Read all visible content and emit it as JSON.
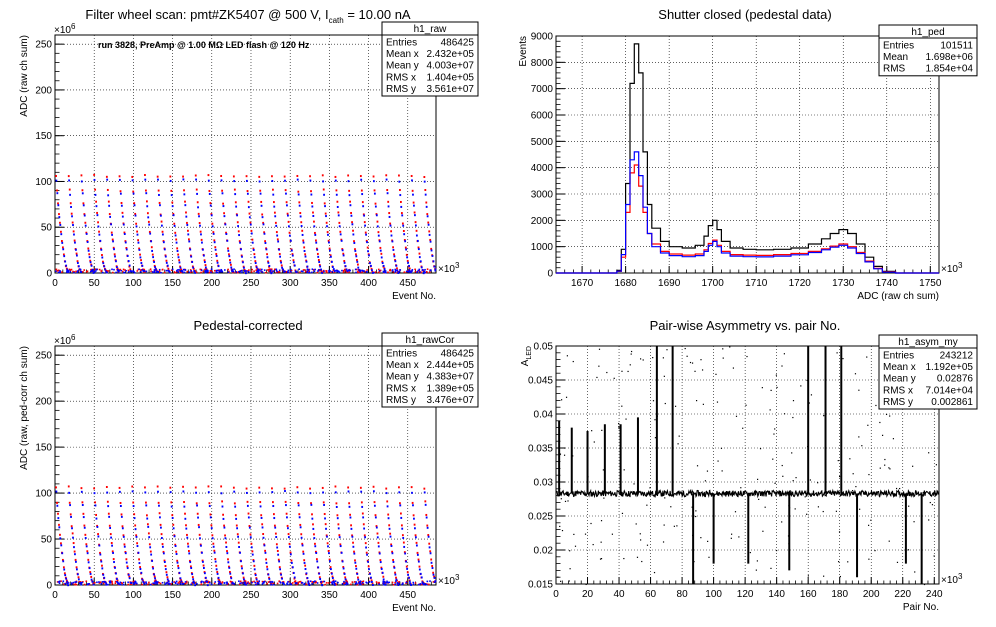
{
  "panels": [
    {
      "title": "Filter wheel scan: pmt#ZK5407 @   500 V, I",
      "title_sub": "cath",
      "title_suffix": " = 10.00 nA",
      "subtitle": "run 3828, PreAmp @ 1.00 MΩ LED flash @  120 Hz",
      "stat_box": {
        "title": "h1_raw",
        "rows": [
          {
            "label": "Entries",
            "value": "486425"
          },
          {
            "label": "Mean x",
            "value": "2.432e+05"
          },
          {
            "label": "Mean y",
            "value": "4.003e+07"
          },
          {
            "label": "RMS x",
            "value": "1.404e+05"
          },
          {
            "label": "RMS y",
            "value": "3.561e+07"
          }
        ]
      },
      "x_axis": {
        "label": "Event No.",
        "ticks": [
          "0",
          "50",
          "100",
          "150",
          "200",
          "250",
          "300",
          "350",
          "400",
          "450"
        ],
        "multiplier": "×10",
        "multiplier_exp": "3"
      },
      "y_axis": {
        "label": "ADC (raw ch sum)",
        "ticks": [
          "0",
          "50",
          "100",
          "150",
          "200",
          "250"
        ],
        "multiplier": "×10",
        "multiplier_exp": "6"
      }
    },
    {
      "title": "Shutter closed (pedestal data)",
      "stat_box": {
        "title": "h1_ped",
        "rows": [
          {
            "label": "Entries",
            "value": "101511"
          },
          {
            "label": "Mean",
            "value": "1.698e+06"
          },
          {
            "label": "RMS",
            "value": "1.854e+04"
          }
        ]
      },
      "x_axis": {
        "label": "ADC (raw ch sum)",
        "ticks": [
          "1670",
          "1680",
          "1690",
          "1700",
          "1710",
          "1720",
          "1730",
          "1740",
          "1750"
        ],
        "multiplier": "×10",
        "multiplier_exp": "3"
      },
      "y_axis": {
        "label": "Events",
        "ticks": [
          "0",
          "1000",
          "2000",
          "3000",
          "4000",
          "5000",
          "6000",
          "7000",
          "8000",
          "9000"
        ]
      }
    },
    {
      "title": "Pedestal-corrected",
      "stat_box": {
        "title": "h1_rawCor",
        "rows": [
          {
            "label": "Entries",
            "value": "486425"
          },
          {
            "label": "Mean x",
            "value": "2.444e+05"
          },
          {
            "label": "Mean y",
            "value": "4.383e+07"
          },
          {
            "label": "RMS x",
            "value": "1.389e+05"
          },
          {
            "label": "RMS y",
            "value": "3.476e+07"
          }
        ]
      },
      "x_axis": {
        "label": "Event No.",
        "ticks": [
          "0",
          "50",
          "100",
          "150",
          "200",
          "250",
          "300",
          "350",
          "400",
          "450"
        ],
        "multiplier": "×10",
        "multiplier_exp": "3"
      },
      "y_axis": {
        "label": "ADC (raw, ped-corr ch sum)",
        "ticks": [
          "0",
          "50",
          "100",
          "150",
          "200",
          "250"
        ],
        "multiplier": "×10",
        "multiplier_exp": "6"
      }
    },
    {
      "title": "Pair-wise Asymmetry vs. pair No.",
      "stat_box": {
        "title": "h1_asym_my",
        "rows": [
          {
            "label": "Entries",
            "value": "243212"
          },
          {
            "label": "Mean x",
            "value": "1.192e+05"
          },
          {
            "label": "Mean y",
            "value": "0.02876"
          },
          {
            "label": "RMS x",
            "value": "7.014e+04"
          },
          {
            "label": "RMS y",
            "value": "0.002861"
          }
        ]
      },
      "x_axis": {
        "label": "Pair No.",
        "ticks": [
          "0",
          "20",
          "40",
          "60",
          "80",
          "100",
          "120",
          "140",
          "160",
          "180",
          "200",
          "220",
          "240"
        ],
        "multiplier": "×10",
        "multiplier_exp": "3"
      },
      "y_axis": {
        "label": "A",
        "label_sub": "LED",
        "ticks": [
          "0.015",
          "0.02",
          "0.025",
          "0.03",
          "0.035",
          "0.04",
          "0.045",
          "0.05"
        ]
      }
    }
  ],
  "chart_data": [
    {
      "type": "scatter",
      "title": "Filter wheel scan: pmt#ZK5407 @   500 V, Icath = 10.00 nA",
      "xlabel": "Event No.",
      "ylabel": "ADC (raw ch sum)",
      "x_units_multiplier": 1000,
      "y_units_multiplier": 1000000,
      "xlim": [
        0,
        486
      ],
      "ylim": [
        0,
        260
      ],
      "grid": true,
      "legend": "top-right",
      "colors": {
        "red": "#ff0000",
        "blue": "#0000ff"
      },
      "filter_cycle_period": 16.2,
      "series": [
        {
          "name": "",
          "color": "#ff0000",
          "step_levels": [
            106,
            90,
            77,
            65,
            55,
            45,
            36,
            27,
            20,
            13,
            8,
            4,
            2
          ]
        },
        {
          "name": "",
          "color": "#0000ff",
          "step_levels": [
            101,
            86,
            73,
            62,
            52,
            42,
            34,
            25,
            18,
            12,
            7,
            3,
            1
          ]
        }
      ]
    },
    {
      "type": "line",
      "title": "Shutter closed (pedestal data)",
      "xlabel": "ADC (raw ch sum)",
      "ylabel": "Events",
      "x_units_multiplier": 1000,
      "xlim": [
        1664,
        1752
      ],
      "ylim": [
        0,
        9000
      ],
      "grid": true,
      "legend": "top-right",
      "series": [
        {
          "name": "",
          "color": "#000000",
          "x": [
            1664,
            1676,
            1678,
            1679,
            1680,
            1681,
            1682,
            1683,
            1684,
            1685,
            1686,
            1688,
            1690,
            1693,
            1696,
            1698,
            1699,
            1700,
            1701,
            1702,
            1704,
            1707,
            1710,
            1714,
            1718,
            1722,
            1725,
            1727,
            1729,
            1731,
            1733,
            1735,
            1737,
            1739,
            1742,
            1752
          ],
          "y": [
            0,
            0,
            100,
            900,
            3400,
            7200,
            8700,
            7600,
            4600,
            2600,
            1700,
            1200,
            1000,
            950,
            1050,
            1400,
            1800,
            2000,
            1650,
            1200,
            950,
            900,
            880,
            900,
            950,
            1100,
            1300,
            1500,
            1650,
            1500,
            1100,
            600,
            250,
            60,
            0,
            0
          ]
        },
        {
          "name": "",
          "color": "#ff0000",
          "x": [
            1664,
            1676,
            1678,
            1679,
            1680,
            1681,
            1682,
            1683,
            1684,
            1685,
            1686,
            1688,
            1690,
            1693,
            1696,
            1698,
            1699,
            1700,
            1701,
            1702,
            1704,
            1707,
            1710,
            1714,
            1718,
            1722,
            1725,
            1727,
            1729,
            1731,
            1733,
            1735,
            1737,
            1739,
            1742,
            1752
          ],
          "y": [
            0,
            0,
            60,
            600,
            2300,
            3800,
            4100,
            3300,
            2300,
            1500,
            1100,
            820,
            720,
            680,
            720,
            880,
            1120,
            1250,
            1050,
            820,
            700,
            680,
            670,
            700,
            740,
            820,
            920,
            1020,
            1100,
            1000,
            780,
            450,
            180,
            40,
            0,
            0
          ]
        },
        {
          "name": "",
          "color": "#0000ff",
          "x": [
            1664,
            1676,
            1678,
            1679,
            1680,
            1681,
            1682,
            1683,
            1684,
            1685,
            1686,
            1688,
            1690,
            1693,
            1696,
            1698,
            1699,
            1700,
            1701,
            1702,
            1704,
            1707,
            1710,
            1714,
            1718,
            1722,
            1725,
            1727,
            1729,
            1731,
            1733,
            1735,
            1737,
            1739,
            1742,
            1752
          ],
          "y": [
            0,
            0,
            70,
            700,
            2600,
            4300,
            4600,
            3700,
            2500,
            1500,
            1000,
            760,
            660,
            620,
            660,
            820,
            1050,
            1200,
            1000,
            760,
            640,
            620,
            610,
            640,
            690,
            780,
            880,
            980,
            1050,
            950,
            740,
            420,
            160,
            30,
            0,
            0
          ]
        }
      ]
    },
    {
      "type": "scatter",
      "title": "Pedestal-corrected",
      "xlabel": "Event No.",
      "ylabel": "ADC (raw, ped-corr ch sum)",
      "x_units_multiplier": 1000,
      "y_units_multiplier": 1000000,
      "xlim": [
        0,
        486
      ],
      "ylim": [
        0,
        260
      ],
      "grid": true,
      "legend": "top-right",
      "filter_cycle_period": 16.2,
      "series": [
        {
          "name": "",
          "color": "#ff0000",
          "step_levels": [
            106,
            90,
            77,
            65,
            55,
            45,
            36,
            27,
            20,
            13,
            8,
            4,
            2
          ]
        },
        {
          "name": "",
          "color": "#0000ff",
          "step_levels": [
            101,
            86,
            73,
            62,
            52,
            42,
            34,
            25,
            18,
            12,
            7,
            3,
            1
          ]
        }
      ]
    },
    {
      "type": "scatter",
      "title": "Pair-wise Asymmetry vs. pair No.",
      "xlabel": "Pair No.",
      "ylabel": "A_LED",
      "x_units_multiplier": 1000,
      "xlim": [
        0,
        243
      ],
      "ylim": [
        0.015,
        0.05
      ],
      "grid": true,
      "legend": "top-right",
      "baseline": 0.0283,
      "excursions": [
        {
          "x": 2,
          "y_low": 0.0283,
          "y_high": 0.039
        },
        {
          "x": 10,
          "y_low": 0.0283,
          "y_high": 0.038
        },
        {
          "x": 20,
          "y_low": 0.0283,
          "y_high": 0.0375
        },
        {
          "x": 31,
          "y_low": 0.0283,
          "y_high": 0.0385
        },
        {
          "x": 41,
          "y_low": 0.0283,
          "y_high": 0.0385
        },
        {
          "x": 52,
          "y_low": 0.0283,
          "y_high": 0.0395
        },
        {
          "x": 64,
          "y_low": 0.0283,
          "y_high": 0.05
        },
        {
          "x": 74,
          "y_low": 0.0283,
          "y_high": 0.05
        },
        {
          "x": 87,
          "y_low": 0.015,
          "y_high": 0.0283
        },
        {
          "x": 100,
          "y_low": 0.018,
          "y_high": 0.0283
        },
        {
          "x": 122,
          "y_low": 0.018,
          "y_high": 0.0283
        },
        {
          "x": 148,
          "y_low": 0.017,
          "y_high": 0.0283
        },
        {
          "x": 160,
          "y_low": 0.0283,
          "y_high": 0.05
        },
        {
          "x": 171,
          "y_low": 0.0283,
          "y_high": 0.05
        },
        {
          "x": 181,
          "y_low": 0.0283,
          "y_high": 0.05
        },
        {
          "x": 191,
          "y_low": 0.016,
          "y_high": 0.0283
        },
        {
          "x": 222,
          "y_low": 0.018,
          "y_high": 0.0283
        },
        {
          "x": 232,
          "y_low": 0.015,
          "y_high": 0.0283
        }
      ]
    }
  ]
}
